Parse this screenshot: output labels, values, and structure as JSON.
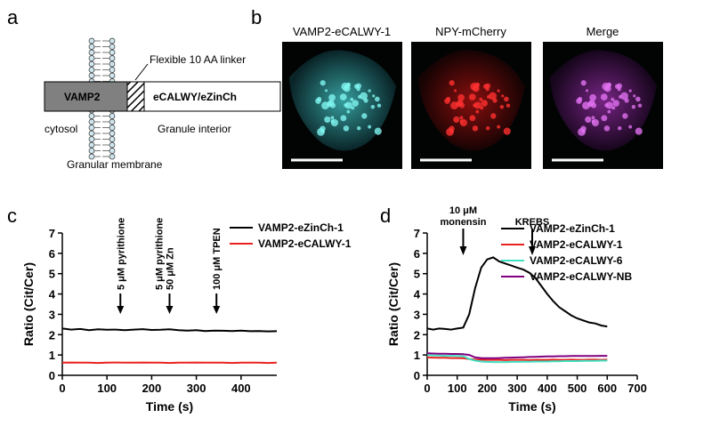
{
  "panel_labels": [
    "a",
    "b",
    "c",
    "d"
  ],
  "diagram": {
    "vamp2": "VAMP2",
    "probe": "eCALWY/eZinCh",
    "linker": "Flexible 10 AA linker",
    "cytosol": "cytosol",
    "interior": "Granule interior",
    "membrane": "Granular membrane"
  },
  "micrographs": {
    "titles": [
      "VAMP2-eCALWY-1",
      "NPY-mCherry",
      "Merge"
    ]
  },
  "chart_data": [
    {
      "type": "line",
      "x_label": "Time (s)",
      "y_label": "Ratio  (Cit/Cer)",
      "x": [
        0,
        20,
        40,
        60,
        80,
        100,
        120,
        140,
        160,
        180,
        200,
        220,
        240,
        260,
        280,
        300,
        320,
        340,
        360,
        380,
        400,
        420,
        440,
        460,
        480
      ],
      "series": [
        {
          "name": "VAMP2-eZinCh-1",
          "color": "#000000",
          "values": [
            2.3,
            2.25,
            2.28,
            2.22,
            2.26,
            2.24,
            2.25,
            2.22,
            2.25,
            2.27,
            2.23,
            2.24,
            2.26,
            2.22,
            2.2,
            2.22,
            2.18,
            2.2,
            2.19,
            2.18,
            2.2,
            2.17,
            2.18,
            2.16,
            2.17
          ]
        },
        {
          "name": "VAMP2-eCALWY-1",
          "color": "#e8231f",
          "values": [
            0.62,
            0.63,
            0.62,
            0.62,
            0.61,
            0.62,
            0.63,
            0.62,
            0.62,
            0.63,
            0.62,
            0.62,
            0.61,
            0.62,
            0.62,
            0.63,
            0.62,
            0.62,
            0.62,
            0.61,
            0.62,
            0.62,
            0.62,
            0.61,
            0.62
          ]
        }
      ],
      "annotations": [
        {
          "x": 130,
          "lines": [
            "5 μM pyrithione"
          ]
        },
        {
          "x": 240,
          "lines": [
            "5 μM pyrithione",
            "50 μM Zn"
          ]
        },
        {
          "x": 345,
          "lines": [
            "100 μM TPEN"
          ]
        }
      ],
      "xlim": [
        0,
        480
      ],
      "xticks": [
        0,
        100,
        200,
        300,
        400
      ],
      "ylim": [
        0,
        7
      ],
      "yticks": [
        0,
        1,
        2,
        3,
        4,
        5,
        6,
        7
      ]
    },
    {
      "type": "line",
      "x_label": "Time (s)",
      "y_label": "Ratio  (Cit/Cer)",
      "x": [
        0,
        20,
        40,
        60,
        80,
        100,
        120,
        140,
        160,
        180,
        200,
        220,
        240,
        260,
        280,
        300,
        320,
        340,
        360,
        380,
        400,
        420,
        440,
        460,
        480,
        500,
        520,
        540,
        560,
        580,
        600
      ],
      "series": [
        {
          "name": "VAMP2-eZinCh-1",
          "color": "#000000",
          "values": [
            2.3,
            2.25,
            2.3,
            2.28,
            2.25,
            2.3,
            2.35,
            3.0,
            4.3,
            5.3,
            5.7,
            5.8,
            5.6,
            5.5,
            5.4,
            5.3,
            5.2,
            5.05,
            4.8,
            4.4,
            4.0,
            3.65,
            3.35,
            3.15,
            2.95,
            2.8,
            2.7,
            2.6,
            2.55,
            2.45,
            2.4
          ]
        },
        {
          "name": "VAMP2-eCALWY-1",
          "color": "#e8231f",
          "values": [
            0.88,
            0.87,
            0.86,
            0.86,
            0.85,
            0.85,
            0.84,
            0.8,
            0.78,
            0.77,
            0.76,
            0.76,
            0.76,
            0.75,
            0.76,
            0.76,
            0.76,
            0.75,
            0.76,
            0.76,
            0.76,
            0.77,
            0.76,
            0.76,
            0.77,
            0.76,
            0.76,
            0.77,
            0.77,
            0.76,
            0.77
          ]
        },
        {
          "name": "VAMP2-eCALWY-6",
          "color": "#40e0c0",
          "values": [
            1.0,
            0.98,
            0.97,
            0.96,
            0.96,
            0.95,
            0.94,
            0.8,
            0.72,
            0.68,
            0.66,
            0.65,
            0.65,
            0.65,
            0.66,
            0.66,
            0.67,
            0.67,
            0.68,
            0.68,
            0.68,
            0.69,
            0.69,
            0.7,
            0.7,
            0.7,
            0.71,
            0.71,
            0.71,
            0.72,
            0.72
          ]
        },
        {
          "name": "VAMP2-eCALWY-NB",
          "color": "#800080",
          "values": [
            1.08,
            1.07,
            1.06,
            1.06,
            1.05,
            1.05,
            1.04,
            1.0,
            0.88,
            0.85,
            0.84,
            0.84,
            0.85,
            0.86,
            0.87,
            0.88,
            0.89,
            0.9,
            0.91,
            0.92,
            0.93,
            0.93,
            0.94,
            0.94,
            0.95,
            0.95,
            0.95,
            0.95,
            0.95,
            0.96,
            0.96
          ]
        }
      ],
      "annotations": [
        {
          "x": 120,
          "lines": [
            "10 μM",
            "monensin"
          ]
        },
        {
          "x": 350,
          "lines": [
            "KREBS"
          ]
        }
      ],
      "xlim": [
        0,
        700
      ],
      "xticks": [
        0,
        100,
        200,
        300,
        400,
        500,
        600,
        700
      ],
      "ylim": [
        0,
        7
      ],
      "yticks": [
        0,
        1,
        2,
        3,
        4,
        5,
        6,
        7
      ]
    }
  ]
}
